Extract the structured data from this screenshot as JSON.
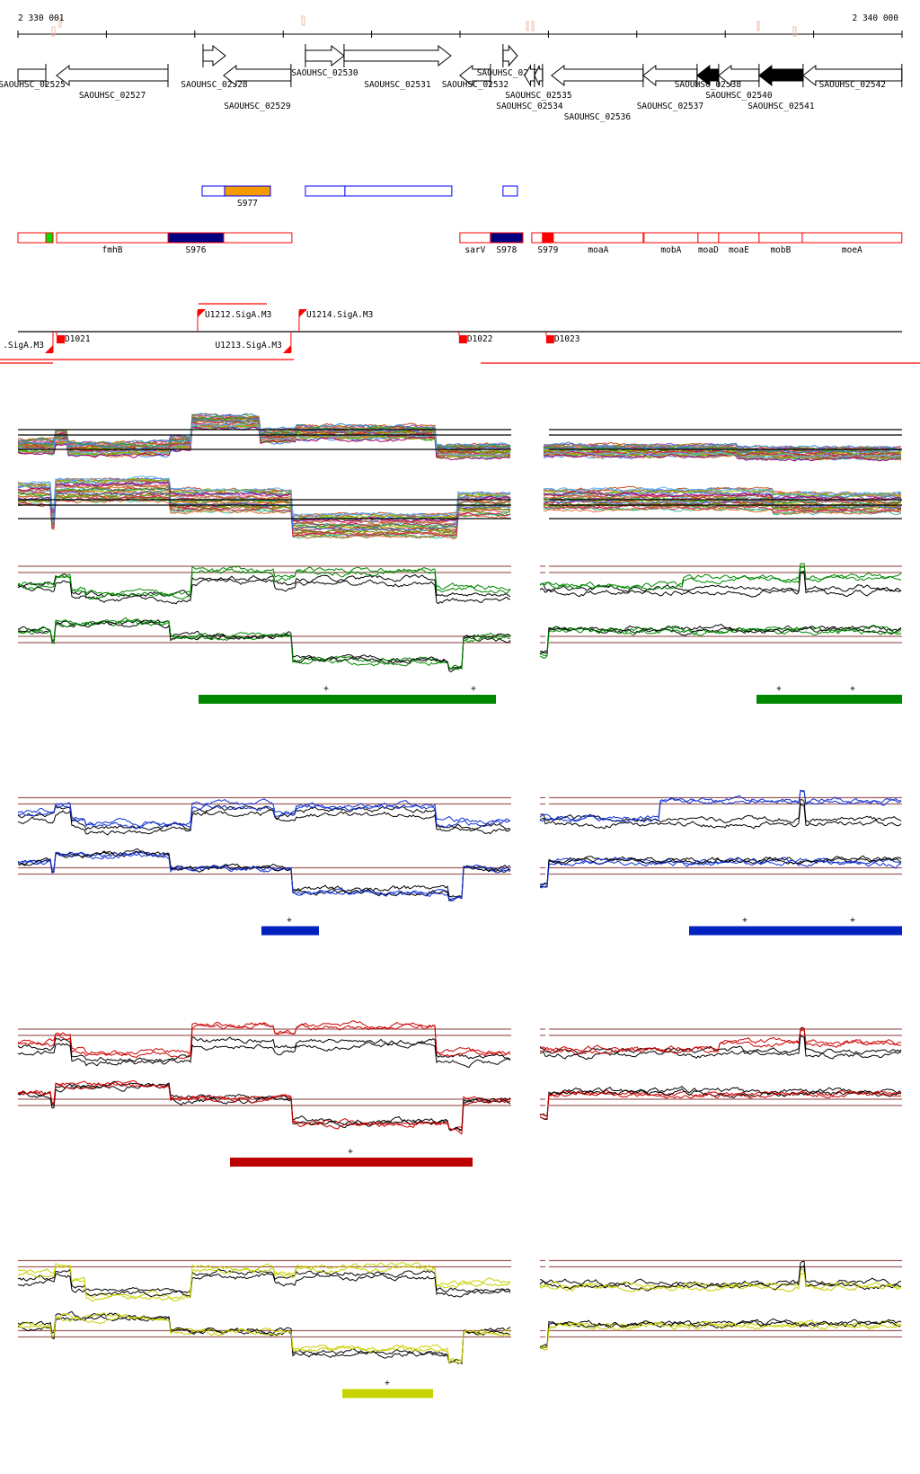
{
  "ruler": {
    "start_label": "2 330 001",
    "end_label": "2 340 000",
    "start_bp": 2330001,
    "end_bp": 2340000,
    "ticks": 11
  },
  "genes": [
    {
      "name": "SAOUHSC_02525",
      "start": 2330001,
      "end": 2330316,
      "strand": "-",
      "fill": "white",
      "truncated": true
    },
    {
      "name": "SAOUHSC_02527",
      "start": 2330438,
      "end": 2331698,
      "strand": "-",
      "fill": "white"
    },
    {
      "name": "SAOUHSC_02528",
      "start": 2332094,
      "end": 2332348,
      "strand": "+",
      "fill": "white"
    },
    {
      "name": "SAOUHSC_02529",
      "start": 2332327,
      "end": 2333089,
      "strand": "-",
      "fill": "white"
    },
    {
      "name": "SAOUHSC_02530",
      "start": 2333252,
      "end": 2333689,
      "strand": "+",
      "fill": "white"
    },
    {
      "name": "SAOUHSC_02531",
      "start": 2333689,
      "end": 2334898,
      "strand": "+",
      "fill": "white"
    },
    {
      "name": "SAOUHSC_02532",
      "start": 2334999,
      "end": 2335345,
      "strand": "-",
      "fill": "white"
    },
    {
      "name": "SAOUHSC_02533",
      "start": 2335487,
      "end": 2335650,
      "strand": "+",
      "fill": "white"
    },
    {
      "name": "SAOUHSC_02534",
      "start": 2335731,
      "end": 2335843,
      "strand": "-",
      "fill": "white"
    },
    {
      "name": "SAOUHSC_02535",
      "start": 2335843,
      "end": 2335934,
      "strand": "-",
      "fill": "white"
    },
    {
      "name": "SAOUHSC_02536",
      "start": 2336036,
      "end": 2337072,
      "strand": "-",
      "fill": "white"
    },
    {
      "name": "SAOUHSC_02537",
      "start": 2337072,
      "end": 2337682,
      "strand": "-",
      "fill": "white"
    },
    {
      "name": "SAOUHSC_02538",
      "start": 2337682,
      "end": 2337926,
      "strand": "-",
      "fill": "black"
    },
    {
      "name": "SAOUHSC_02540",
      "start": 2337926,
      "end": 2338383,
      "strand": "-",
      "fill": "white"
    },
    {
      "name": "SAOUHSC_02541",
      "start": 2338383,
      "end": 2338881,
      "strand": "-",
      "fill": "black"
    },
    {
      "name": "SAOUHSC_02542",
      "start": 2338881,
      "end": 2339998,
      "strand": "-",
      "fill": "white"
    }
  ],
  "features_forward": [
    {
      "label": "",
      "start": 2332084,
      "end": 2332338,
      "fill": "none"
    },
    {
      "label": "S977",
      "start": 2332338,
      "end": 2332856,
      "fill": "#f59a00"
    },
    {
      "label": "",
      "start": 2333252,
      "end": 2333699,
      "fill": "none"
    },
    {
      "label": "",
      "start": 2333699,
      "end": 2334908,
      "fill": "none"
    },
    {
      "label": "",
      "start": 2335487,
      "end": 2335650,
      "fill": "none"
    }
  ],
  "features_reverse": [
    {
      "label": "",
      "start": 2330001,
      "end": 2330316,
      "fill": "none"
    },
    {
      "label": "",
      "start": 2330316,
      "end": 2330397,
      "fill": "#00e000"
    },
    {
      "label": "fmhB",
      "start": 2330438,
      "end": 2331698,
      "fill": "none"
    },
    {
      "label": "S976",
      "start": 2331698,
      "end": 2332328,
      "fill": "#000080"
    },
    {
      "label": "",
      "start": 2332328,
      "end": 2333099,
      "fill": "none"
    },
    {
      "label": "sarV",
      "start": 2334999,
      "end": 2335345,
      "fill": "none"
    },
    {
      "label": "S978",
      "start": 2335345,
      "end": 2335711,
      "fill": "#000080"
    },
    {
      "label": "",
      "start": 2335812,
      "end": 2335934,
      "fill": "none"
    },
    {
      "label": "S979",
      "start": 2335934,
      "end": 2336056,
      "fill": "#ff0000"
    },
    {
      "label": "moaA",
      "start": 2336056,
      "end": 2337072,
      "fill": "none"
    },
    {
      "label": "mobA",
      "start": 2337082,
      "end": 2337692,
      "fill": "none"
    },
    {
      "label": "moaD",
      "start": 2337692,
      "end": 2337926,
      "fill": "none"
    },
    {
      "label": "moaE",
      "start": 2337926,
      "end": 2338383,
      "fill": "none"
    },
    {
      "label": "mobB",
      "start": 2338383,
      "end": 2338871,
      "fill": "none"
    },
    {
      "label": "moeA",
      "start": 2338871,
      "end": 2339998,
      "fill": "none"
    }
  ],
  "promoters": [
    {
      "label": "U1212.SigA.M3",
      "pos": 2332033,
      "strand": "+"
    },
    {
      "label": "U1214.SigA.M3",
      "pos": 2333181,
      "strand": "+"
    },
    {
      "label": ".SigA.M3",
      "pos": 2330397,
      "strand": "-"
    },
    {
      "label": "U1213.SigA.M3",
      "pos": 2333089,
      "strand": "-"
    }
  ],
  "terminators": [
    {
      "label": "D1021",
      "pos": 2330438
    },
    {
      "label": "D1022",
      "pos": 2334989
    },
    {
      "label": "D1023",
      "pos": 2335975
    }
  ],
  "colors": {
    "gene_outline": "#000000",
    "forward_feature": "#0000ff",
    "reverse_feature": "#ff0000",
    "reference_line": "#a06060",
    "ruler_marker": "#f4b8a8"
  },
  "sections": [
    {
      "id": "green",
      "color": "#008800",
      "bar_color": "#008800",
      "plus_left": [
        "+",
        "+"
      ],
      "plus_right": [
        "+",
        "+"
      ]
    },
    {
      "id": "blue",
      "color": "#1030d0",
      "bar_color": "#0022c0",
      "plus_left": [
        "+"
      ],
      "plus_right": [
        "+",
        "+"
      ]
    },
    {
      "id": "red",
      "color": "#cc0000",
      "bar_color": "#bb0000",
      "plus_left": [
        "+"
      ],
      "plus_right": []
    },
    {
      "id": "yellow",
      "color": "#c8d000",
      "bar_color": "#c8d400",
      "plus_left": [
        "+"
      ],
      "plus_right": []
    }
  ]
}
